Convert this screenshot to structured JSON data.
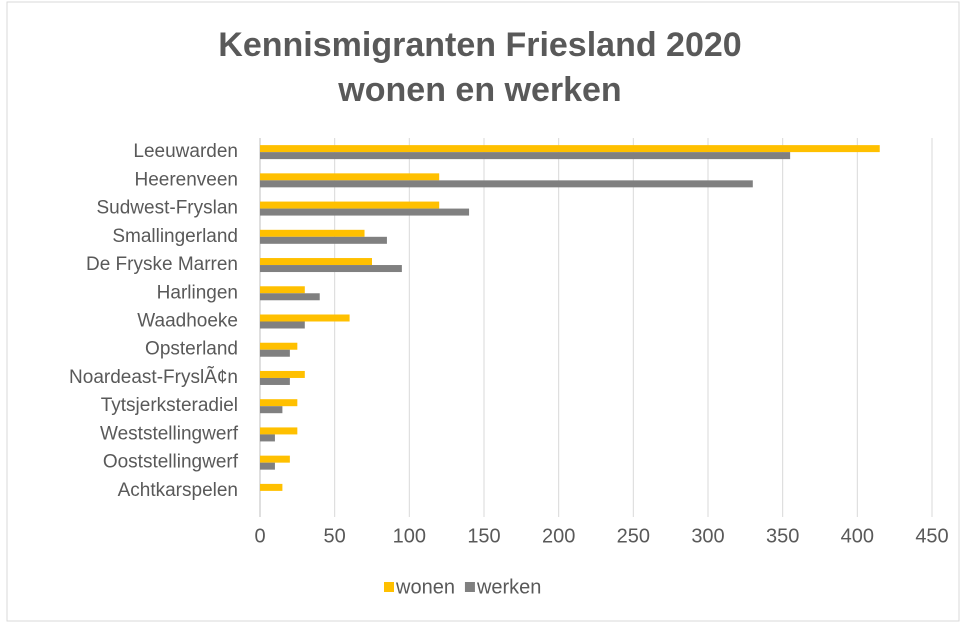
{
  "chart_data": {
    "type": "hbar",
    "title": [
      "Kennismigranten Friesland 2020",
      "wonen en werken"
    ],
    "categories": [
      "Leeuwarden",
      "Heerenveen",
      "Sudwest-Fryslan",
      "Smallingerland",
      "De Fryske Marren",
      "Harlingen",
      "Waadhoeke",
      "Opsterland",
      "Noardeast-FryslÃ¢n",
      "Tytsjerksteradiel",
      "Weststellingwerf",
      "Ooststellingwerf",
      "Achtkarspelen"
    ],
    "series": [
      {
        "name": "wonen",
        "color": "#ffc000",
        "values": [
          415,
          120,
          120,
          70,
          75,
          30,
          60,
          25,
          30,
          25,
          25,
          20,
          15
        ]
      },
      {
        "name": "werken",
        "color": "#808080",
        "values": [
          355,
          330,
          140,
          85,
          95,
          40,
          30,
          20,
          20,
          15,
          10,
          10,
          0
        ]
      }
    ],
    "xlim": [
      0,
      450
    ],
    "xticks": [
      0,
      50,
      100,
      150,
      200,
      250,
      300,
      350,
      400,
      450
    ],
    "grid": true,
    "legend": "bottom"
  }
}
